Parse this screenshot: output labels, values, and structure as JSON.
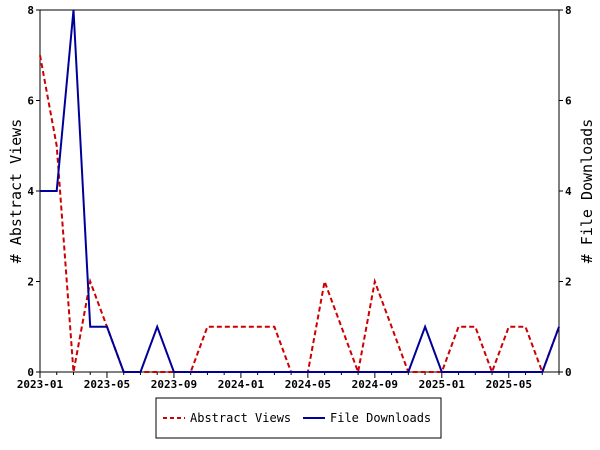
{
  "chart_data": {
    "type": "line",
    "x": [
      "2023-01",
      "2023-02",
      "2023-03",
      "2023-04",
      "2023-05",
      "2023-06",
      "2023-07",
      "2023-08",
      "2023-09",
      "2023-10",
      "2023-11",
      "2023-12",
      "2024-01",
      "2024-02",
      "2024-03",
      "2024-04",
      "2024-05",
      "2024-06",
      "2024-07",
      "2024-08",
      "2024-09",
      "2024-10",
      "2024-11",
      "2024-12",
      "2025-01",
      "2025-02",
      "2025-03",
      "2025-04",
      "2025-05",
      "2025-06",
      "2025-07",
      "2025-08"
    ],
    "x_tick_labels": [
      "2023-01",
      "2023-05",
      "2023-09",
      "2024-01",
      "2024-05",
      "2024-09",
      "2025-01",
      "2025-05"
    ],
    "series": [
      {
        "name": "Abstract Views",
        "axis": "left",
        "color": "#cc0000",
        "dash": true,
        "values": [
          7,
          5,
          0,
          2,
          1,
          0,
          0,
          0,
          0,
          0,
          1,
          1,
          1,
          1,
          1,
          0,
          0,
          2,
          1,
          0,
          2,
          1,
          0,
          0,
          0,
          1,
          1,
          0,
          1,
          1,
          0,
          1
        ]
      },
      {
        "name": "File Downloads",
        "axis": "right",
        "color": "#000099",
        "dash": false,
        "values": [
          4,
          4,
          8,
          1,
          1,
          0,
          0,
          1,
          0,
          0,
          0,
          0,
          0,
          0,
          0,
          0,
          0,
          0,
          0,
          0,
          0,
          0,
          0,
          1,
          0,
          0,
          0,
          0,
          0,
          0,
          0,
          1
        ]
      }
    ],
    "ylabel_left": "# Abstract Views",
    "ylabel_right": "# File Downloads",
    "ylim_left": [
      0,
      8
    ],
    "ylim_right": [
      0,
      8
    ],
    "y_ticks": [
      0,
      2,
      4,
      6,
      8
    ],
    "grid": false,
    "legend_position": "bottom"
  }
}
